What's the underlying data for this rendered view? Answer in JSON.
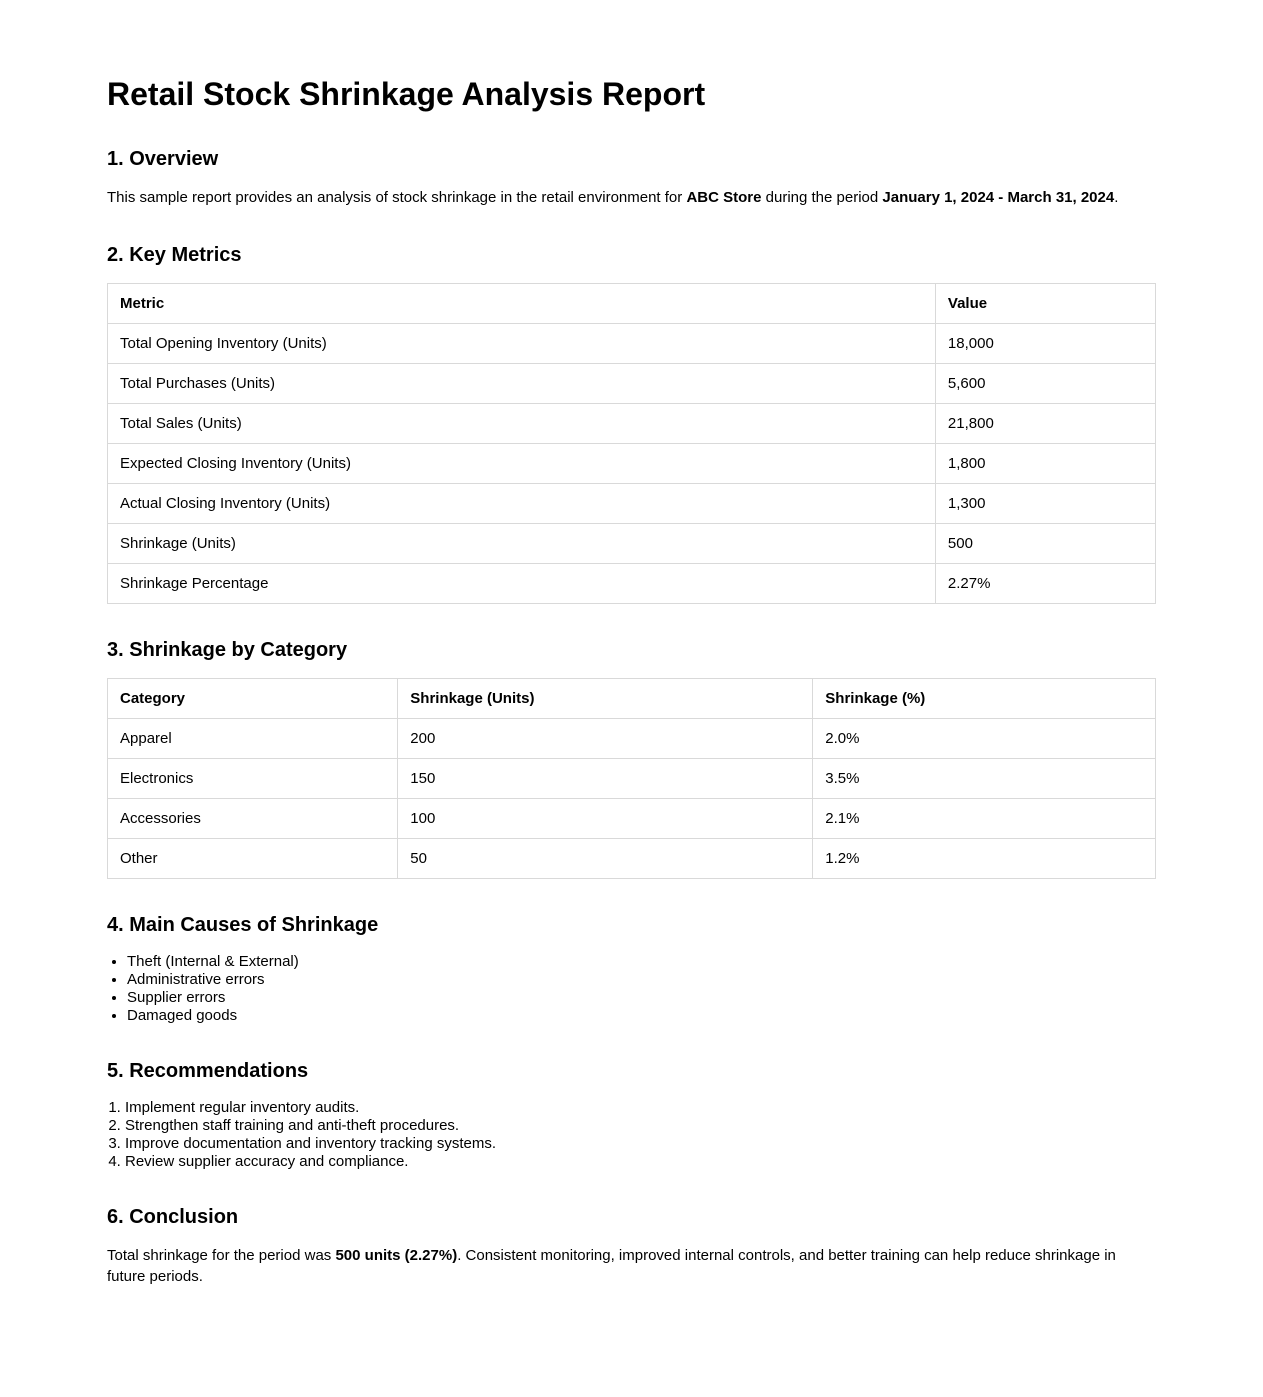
{
  "document": {
    "title": "Retail Stock Shrinkage Analysis Report"
  },
  "overview": {
    "heading": "1. Overview",
    "text_before_store": "This sample report provides an analysis of stock shrinkage in the retail environment for ",
    "store_name": "ABC Store",
    "text_between": " during the period ",
    "period": "January 1, 2024 - March 31, 2024",
    "text_after": "."
  },
  "key_metrics": {
    "heading": "2. Key Metrics",
    "columns": [
      "Metric",
      "Value"
    ],
    "rows": [
      [
        "Total Opening Inventory (Units)",
        "18,000"
      ],
      [
        "Total Purchases (Units)",
        "5,600"
      ],
      [
        "Total Sales (Units)",
        "21,800"
      ],
      [
        "Expected Closing Inventory (Units)",
        "1,800"
      ],
      [
        "Actual Closing Inventory (Units)",
        "1,300"
      ],
      [
        "Shrinkage (Units)",
        "500"
      ],
      [
        "Shrinkage Percentage",
        "2.27%"
      ]
    ]
  },
  "shrinkage_by_category": {
    "heading": "3. Shrinkage by Category",
    "columns": [
      "Category",
      "Shrinkage (Units)",
      "Shrinkage (%)"
    ],
    "rows": [
      [
        "Apparel",
        "200",
        "2.0%"
      ],
      [
        "Electronics",
        "150",
        "3.5%"
      ],
      [
        "Accessories",
        "100",
        "2.1%"
      ],
      [
        "Other",
        "50",
        "1.2%"
      ]
    ]
  },
  "main_causes": {
    "heading": "4. Main Causes of Shrinkage",
    "items": [
      "Theft (Internal & External)",
      "Administrative errors",
      "Supplier errors",
      "Damaged goods"
    ]
  },
  "recommendations": {
    "heading": "5. Recommendations",
    "items": [
      "Implement regular inventory audits.",
      "Strengthen staff training and anti-theft procedures.",
      "Improve documentation and inventory tracking systems.",
      "Review supplier accuracy and compliance."
    ]
  },
  "conclusion": {
    "heading": "6. Conclusion",
    "text_before": "Total shrinkage for the period was ",
    "highlight": "500 units (2.27%)",
    "text_after": ". Consistent monitoring, improved internal controls, and better training can help reduce shrinkage in future periods."
  },
  "colors": {
    "background": "#ffffff",
    "text": "#000000",
    "table_border": "#d9d9d9"
  }
}
